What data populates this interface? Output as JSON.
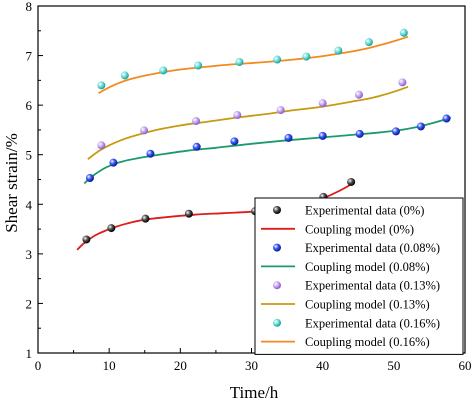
{
  "chart_data": {
    "type": "scatter",
    "title": "",
    "xlabel": "Time/h",
    "ylabel": "Shear strain/%",
    "xlim": [
      0,
      60
    ],
    "ylim": [
      1,
      8
    ],
    "xticks": [
      0,
      10,
      20,
      30,
      40,
      50,
      60
    ],
    "yticks": [
      1,
      2,
      3,
      4,
      5,
      6,
      7,
      8
    ],
    "grid": false,
    "legend_position": "bottom-right",
    "series": [
      {
        "name": "Experimental data (0%)",
        "kind": "scatter",
        "color": "#111111",
        "x": [
          6.8,
          10.3,
          15.1,
          21.2,
          30.5,
          33.8,
          35.3,
          40.1,
          44.0
        ],
        "y": [
          3.29,
          3.52,
          3.71,
          3.81,
          3.86,
          3.81,
          3.96,
          4.15,
          4.45
        ]
      },
      {
        "name": "Coupling model (0%)",
        "kind": "line",
        "color": "#dd1c1c",
        "x": [
          5.5,
          6.5,
          8,
          9.5,
          11,
          13,
          15,
          18,
          22,
          26,
          30,
          33,
          36,
          39,
          41,
          43,
          44.5
        ],
        "y": [
          3.08,
          3.22,
          3.37,
          3.47,
          3.55,
          3.63,
          3.69,
          3.74,
          3.79,
          3.82,
          3.85,
          3.89,
          3.96,
          4.07,
          4.18,
          4.32,
          4.45
        ]
      },
      {
        "name": "Experimental data (0.08%)",
        "kind": "scatter",
        "color": "#1f3fd6",
        "x": [
          7.3,
          10.6,
          15.8,
          22.3,
          27.6,
          35.2,
          40.0,
          45.2,
          50.3,
          53.8,
          57.4
        ],
        "y": [
          4.53,
          4.84,
          5.02,
          5.16,
          5.27,
          5.34,
          5.38,
          5.42,
          5.47,
          5.57,
          5.73
        ]
      },
      {
        "name": "Coupling model (0.08%)",
        "kind": "line",
        "color": "#1d9a6c",
        "x": [
          6.5,
          7.5,
          9,
          10.5,
          12,
          14,
          17,
          21,
          25,
          30,
          35,
          40,
          45,
          50,
          53,
          56,
          58
        ],
        "y": [
          4.42,
          4.55,
          4.7,
          4.8,
          4.87,
          4.93,
          5.0,
          5.08,
          5.14,
          5.22,
          5.29,
          5.35,
          5.41,
          5.48,
          5.55,
          5.66,
          5.75
        ]
      },
      {
        "name": "Experimental data (0.13%)",
        "kind": "scatter",
        "color": "#b488e6",
        "x": [
          8.9,
          14.9,
          22.2,
          28.0,
          34.1,
          40.0,
          45.1,
          51.2
        ],
        "y": [
          5.19,
          5.49,
          5.68,
          5.8,
          5.9,
          6.04,
          6.21,
          6.46
        ]
      },
      {
        "name": "Coupling model (0.13%)",
        "kind": "line",
        "color": "#c79a12",
        "x": [
          7,
          8.5,
          10,
          12,
          14,
          17,
          20,
          24,
          28,
          32,
          36,
          40,
          44,
          47,
          50,
          52
        ],
        "y": [
          4.91,
          5.07,
          5.19,
          5.31,
          5.4,
          5.51,
          5.59,
          5.67,
          5.75,
          5.82,
          5.9,
          5.97,
          6.07,
          6.15,
          6.27,
          6.37
        ]
      },
      {
        "name": "Experimental data (0.16%)",
        "kind": "scatter",
        "color": "#4fd0cc",
        "x": [
          8.9,
          12.2,
          17.6,
          22.5,
          28.3,
          33.6,
          37.7,
          42.2,
          46.5,
          51.4
        ],
        "y": [
          6.4,
          6.6,
          6.7,
          6.8,
          6.87,
          6.92,
          6.98,
          7.1,
          7.27,
          7.46
        ]
      },
      {
        "name": "Coupling model (0.16%)",
        "kind": "line",
        "color": "#f28a1e",
        "x": [
          8.5,
          10,
          12,
          14.5,
          17,
          20,
          24,
          28,
          32,
          36,
          40,
          44,
          47,
          50,
          52
        ],
        "y": [
          6.24,
          6.36,
          6.48,
          6.58,
          6.65,
          6.72,
          6.78,
          6.83,
          6.87,
          6.92,
          6.99,
          7.08,
          7.17,
          7.29,
          7.38
        ]
      }
    ],
    "legend": [
      "Experimental data (0%)",
      "Coupling model (0%)",
      "Experimental data (0.08%)",
      "Coupling model (0.08%)",
      "Experimental data (0.13%)",
      "Coupling model (0.13%)",
      "Experimental data (0.16%)",
      "Coupling model (0.16%)"
    ]
  }
}
